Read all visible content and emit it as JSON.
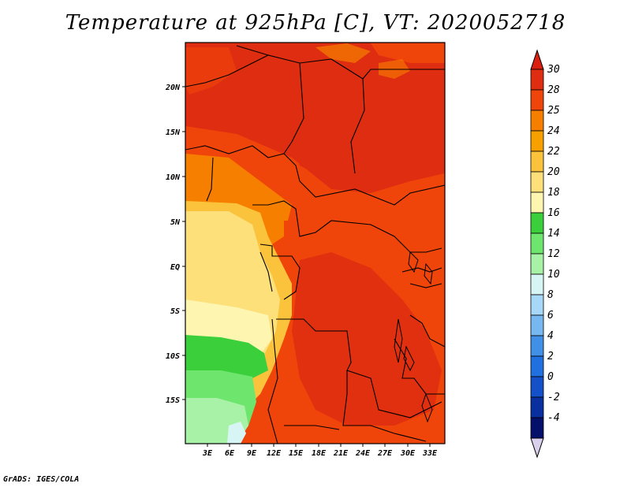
{
  "title": "Temperature at 925hPa [C], VT: 2020052718",
  "credit": "GrADS: IGES/COLA",
  "lat_ticks": [
    "20N",
    "15N",
    "10N",
    "5N",
    "EQ",
    "5S",
    "10S",
    "15S"
  ],
  "lon_ticks": [
    "3E",
    "6E",
    "9E",
    "12E",
    "15E",
    "18E",
    "21E",
    "24E",
    "27E",
    "30E",
    "33E"
  ],
  "colorbar": {
    "labels": [
      "30",
      "28",
      "25",
      "24",
      "22",
      "20",
      "18",
      "16",
      "14",
      "12",
      "10",
      "8",
      "6",
      "4",
      "2",
      "0",
      "-2",
      "-4"
    ],
    "colors": [
      "#de2d10",
      "#f0450a",
      "#f77f00",
      "#f7a000",
      "#fbc23c",
      "#fde07a",
      "#fdf5b0",
      "#3ccf3c",
      "#6ee66e",
      "#a8f2a8",
      "#d8f5f5",
      "#a8d8f8",
      "#78b8f0",
      "#4090e8",
      "#2070e0",
      "#1450c8",
      "#0a30a0",
      "#04106a"
    ],
    "top_color": "#dc2010",
    "bottom_color": "#d8d0ec"
  }
}
